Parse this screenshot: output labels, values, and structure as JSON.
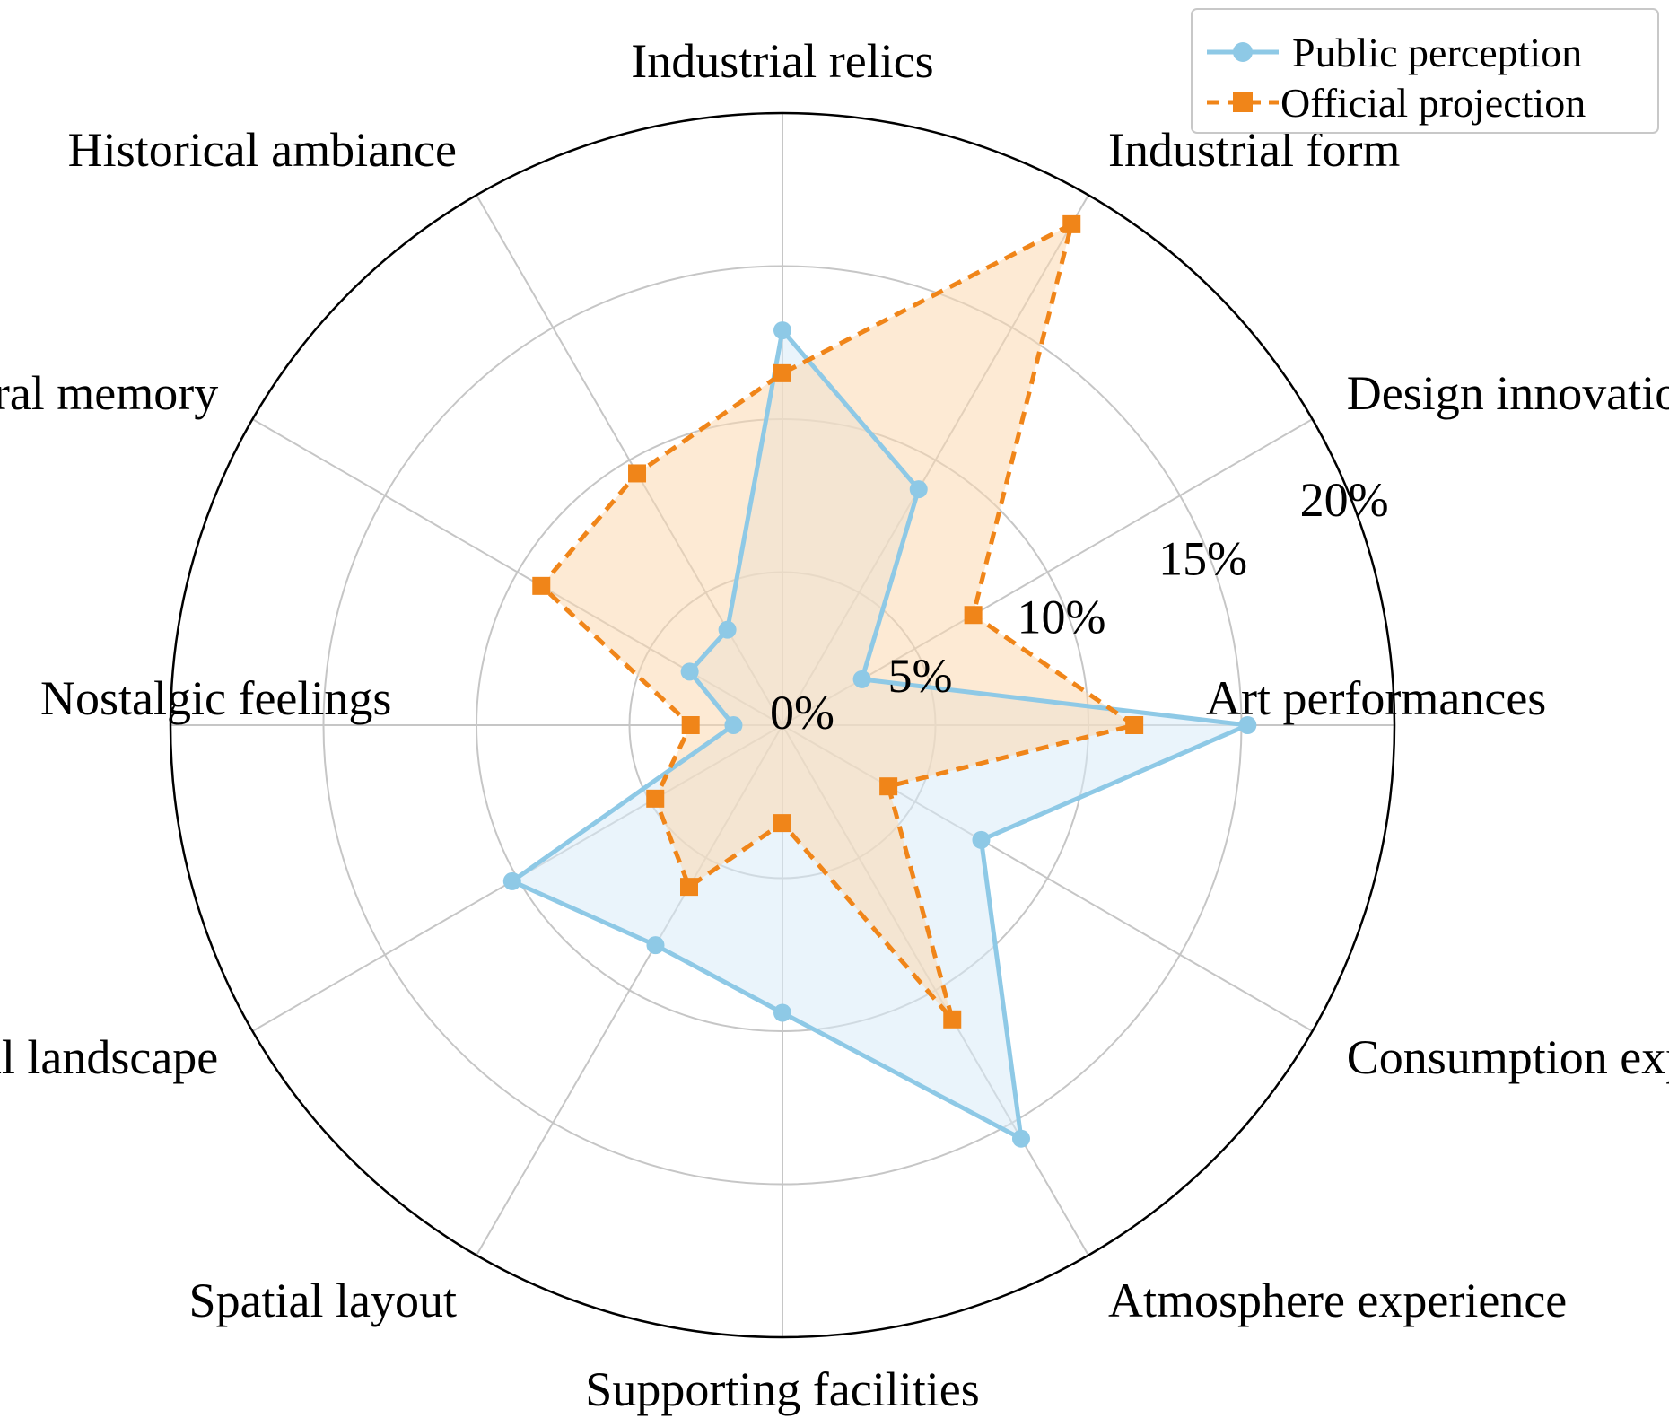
{
  "chart_data": {
    "type": "radar",
    "categories": [
      "Art performances",
      "Design innovation",
      "Industrial form",
      "Industrial relics",
      "Historical ambiance",
      "Cultural memory",
      "Nostalgic feelings",
      "Environmental landscape",
      "Spatial layout",
      "Supporting facilities",
      "Atmosphere experience",
      "Consumption experience"
    ],
    "series": [
      {
        "name": "Public perception",
        "color": "#8ec9e6",
        "fill": "#d8ebf7",
        "line_style": "solid",
        "marker": "circle",
        "values": [
          15.2,
          3.0,
          8.9,
          12.9,
          3.6,
          3.5,
          1.6,
          10.2,
          8.3,
          9.4,
          15.6,
          7.5
        ]
      },
      {
        "name": "Official projection",
        "color": "#f08519",
        "fill": "#fbd9b0",
        "line_style": "dashed",
        "marker": "square",
        "values": [
          11.5,
          7.2,
          18.9,
          11.5,
          9.5,
          9.1,
          3.0,
          4.8,
          6.1,
          3.2,
          11.1,
          4.0
        ]
      }
    ],
    "radial_ticks": [
      "0%",
      "5%",
      "10%",
      "15%",
      "20%"
    ],
    "radial_tick_values": [
      0,
      5,
      10,
      15,
      20
    ],
    "rlim": [
      0,
      20
    ],
    "grid": true,
    "legend_position": "top-right"
  }
}
